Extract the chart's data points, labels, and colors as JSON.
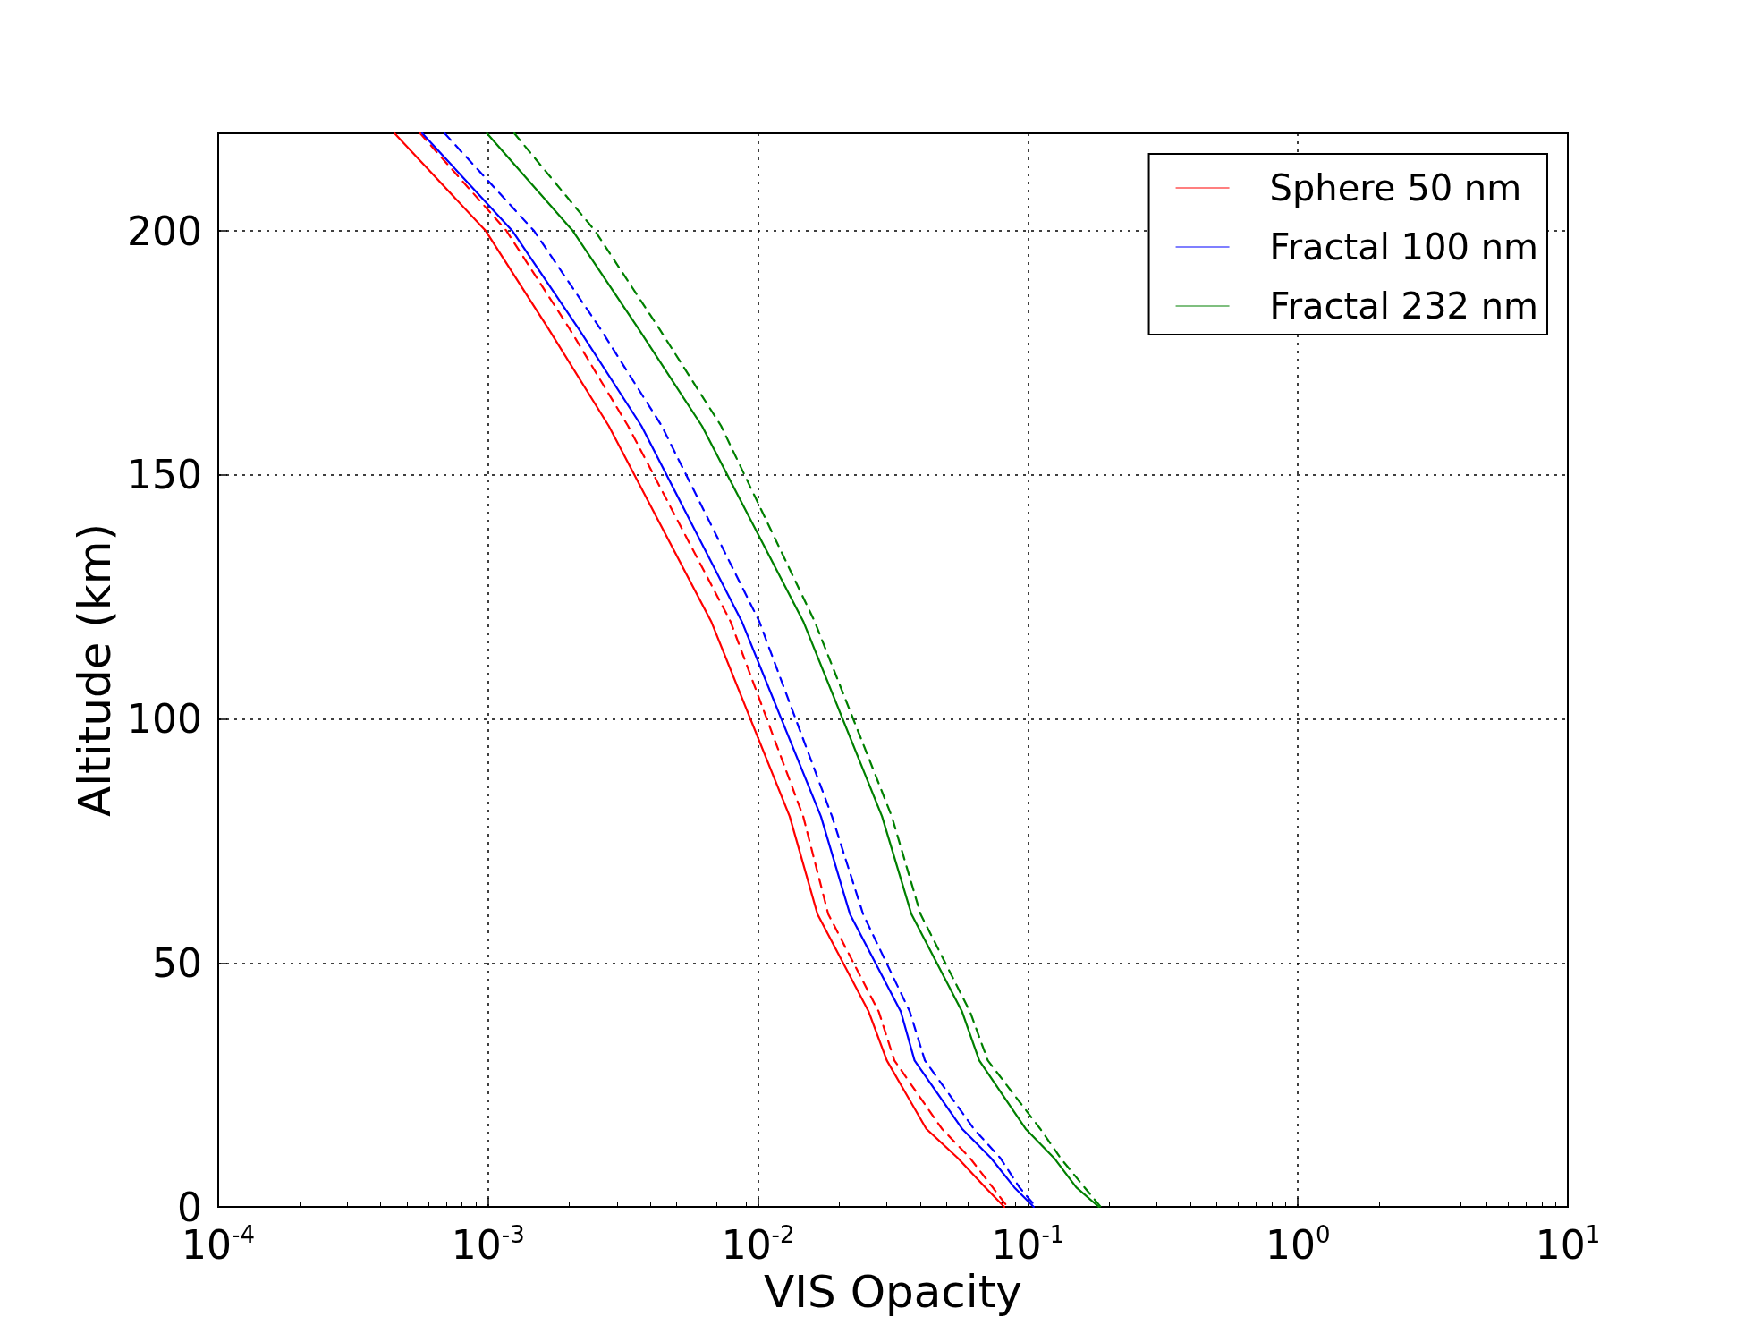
{
  "chart_data": {
    "type": "line",
    "xlabel": "VIS Opacity",
    "ylabel": "Altitude (km)",
    "log": "x",
    "grid": true,
    "legend": "top right",
    "marker": "none",
    "xlim": [
      0.0001,
      10
    ],
    "xticks": [
      {
        "value": 0.0001,
        "label": "10$^{-4}$"
      },
      {
        "value": 0.001,
        "label": "10$^{-3}$"
      },
      {
        "value": 0.01,
        "label": "10$^{-2}$"
      },
      {
        "value": 0.1,
        "label": "10$^{-1}$"
      },
      {
        "value": 1,
        "label": "10$^{0}$"
      },
      {
        "value": 10,
        "label": "10$^{1}$"
      }
    ],
    "ylim": [
      0,
      220
    ],
    "yticks": [
      0,
      50,
      100,
      150,
      200
    ],
    "series": [
      {
        "name": "Sphere 50 nm",
        "color": "#ff0000",
        "line_style": "solid",
        "x": [
          0.00045,
          0.00098,
          0.00167,
          0.0028,
          0.0067,
          0.0131,
          0.0166,
          0.0257,
          0.03,
          0.042,
          0.055,
          0.0695,
          0.0817
        ],
        "values": [
          220,
          200,
          180,
          160,
          120,
          80,
          60,
          40,
          30,
          16,
          10,
          4,
          0
        ]
      },
      {
        "color": "#ff0000",
        "line_style": "dashed",
        "x": [
          0.00056,
          0.00117,
          0.002,
          0.0033,
          0.0079,
          0.0147,
          0.0182,
          0.028,
          0.032,
          0.048,
          0.061,
          0.074,
          0.084
        ],
        "values": [
          220,
          200,
          180,
          160,
          120,
          80,
          60,
          40,
          30,
          16,
          10,
          4,
          0
        ]
      },
      {
        "name": "Fractal 100 nm",
        "color": "#0000ff",
        "line_style": "solid",
        "x": [
          0.00057,
          0.00123,
          0.00216,
          0.0037,
          0.0087,
          0.0171,
          0.0219,
          0.0338,
          0.038,
          0.057,
          0.073,
          0.089,
          0.105
        ],
        "values": [
          220,
          200,
          180,
          160,
          120,
          80,
          60,
          40,
          30,
          16,
          10,
          4,
          0
        ]
      },
      {
        "color": "#0000ff",
        "line_style": "dashed",
        "x": [
          0.00069,
          0.00148,
          0.0026,
          0.0044,
          0.0101,
          0.0188,
          0.0245,
          0.0365,
          0.0415,
          0.063,
          0.079,
          0.093,
          0.107
        ],
        "values": [
          220,
          200,
          180,
          160,
          120,
          80,
          60,
          40,
          30,
          16,
          10,
          4,
          0
        ]
      },
      {
        "name": "Fractal 232 nm",
        "color": "#008000",
        "line_style": "solid",
        "x": [
          0.00099,
          0.00206,
          0.0036,
          0.0062,
          0.0147,
          0.0288,
          0.037,
          0.057,
          0.066,
          0.098,
          0.125,
          0.151,
          0.183
        ],
        "values": [
          220,
          200,
          180,
          160,
          120,
          80,
          60,
          40,
          30,
          16,
          10,
          4,
          0
        ]
      },
      {
        "color": "#008000",
        "line_style": "dashed",
        "x": [
          0.00125,
          0.00249,
          0.0043,
          0.0073,
          0.0162,
          0.0313,
          0.04,
          0.061,
          0.071,
          0.111,
          0.132,
          0.162,
          0.186
        ],
        "values": [
          220,
          200,
          180,
          160,
          120,
          80,
          60,
          40,
          30,
          16,
          10,
          4,
          0
        ]
      }
    ]
  }
}
